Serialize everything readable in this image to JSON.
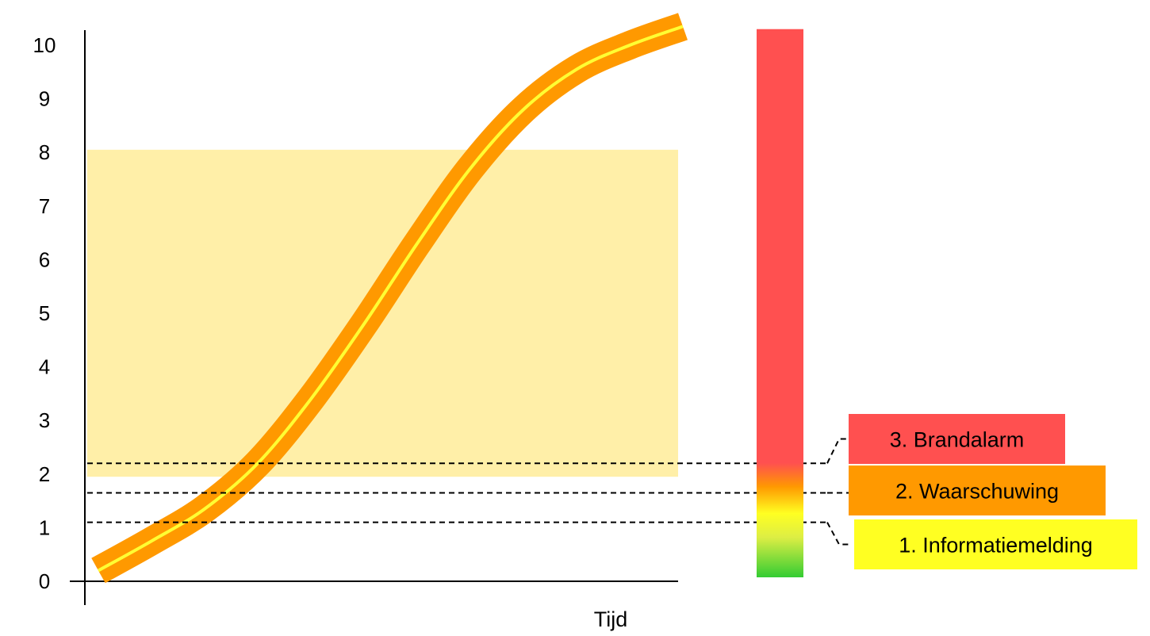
{
  "chart_data": {
    "type": "line",
    "title": "",
    "xlabel": "Tijd",
    "ylabel": "",
    "ylim": [
      0,
      10
    ],
    "y_ticks": [
      0,
      1,
      2,
      3,
      4,
      5,
      6,
      7,
      8,
      9,
      10
    ],
    "grid": false,
    "series": [
      {
        "x": [
          0,
          1,
          2,
          3,
          4,
          5,
          6,
          7,
          8,
          9,
          10,
          11
        ],
        "y": [
          0.2,
          0.75,
          1.35,
          2.2,
          3.4,
          4.8,
          6.3,
          7.7,
          8.8,
          9.55,
          10.0,
          10.35
        ],
        "colors": {
          "band": "#FF9900",
          "core": "#FFFF33"
        }
      }
    ],
    "x_range": [
      0,
      11
    ],
    "region": {
      "y_from": 1.95,
      "y_to": 8.05,
      "color": "#FFEFA8"
    },
    "thresholds": [
      {
        "level": 1,
        "value": 1.1,
        "label": "1. Informatiemelding",
        "color": "#FFFF22"
      },
      {
        "level": 2,
        "value": 1.65,
        "label": "2. Waarschuwing",
        "color": "#FF9900"
      },
      {
        "level": 3,
        "value": 2.2,
        "label": "3. Brandalarm",
        "color": "#FF5050"
      }
    ],
    "scale_bar": {
      "y_from": 0,
      "y_to": 10.3,
      "stops": [
        {
          "value": 0,
          "color": "#33CC33"
        },
        {
          "value": 0.75,
          "color": "#DDEE44"
        },
        {
          "value": 1.2,
          "color": "#FFFF22"
        },
        {
          "value": 1.7,
          "color": "#FF9900"
        },
        {
          "value": 2.15,
          "color": "#FF5050"
        },
        {
          "value": 10.3,
          "color": "#FF5050"
        }
      ]
    }
  }
}
